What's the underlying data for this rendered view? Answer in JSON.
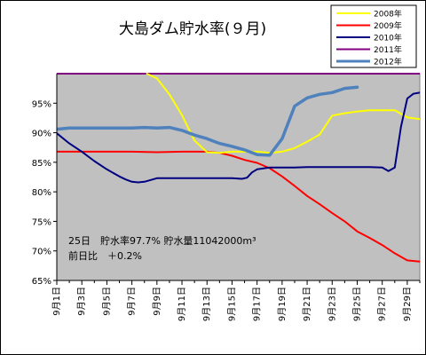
{
  "chart_data": {
    "type": "line",
    "title": "大島ダム貯水率(９月)",
    "ylim": [
      65,
      100
    ],
    "y_ticks": [
      65,
      70,
      75,
      80,
      85,
      90,
      95
    ],
    "y_tick_labels": [
      "65%",
      "70%",
      "75%",
      "80%",
      "85%",
      "90%",
      "95%"
    ],
    "x_ticks": [
      1,
      3,
      5,
      7,
      9,
      11,
      13,
      15,
      17,
      19,
      21,
      23,
      25,
      27,
      29
    ],
    "x_tick_labels": [
      "9月1日",
      "9月3日",
      "9月5日",
      "9月7日",
      "9月9日",
      "9月11日",
      "9月13日",
      "9月15日",
      "9月17日",
      "9月19日",
      "9月21日",
      "9月23日",
      "9月25日",
      "9月27日",
      "9月29日"
    ],
    "xlim": [
      1,
      30
    ],
    "legend_position": "top-right",
    "grid": false,
    "plot_background": "#c0c0c0",
    "annotation": {
      "line1": "25日　貯水率97.7% 貯水量11042000m³",
      "line2": "前日比　＋0.2%"
    },
    "series": [
      {
        "name": "2008年",
        "color": "#ffff00",
        "width": 2,
        "x": [
          8.2,
          9,
          10,
          11,
          12,
          13,
          14,
          15,
          16,
          17,
          18,
          19,
          20,
          21,
          22,
          23,
          24,
          25,
          26,
          27,
          28,
          29,
          30
        ],
        "y": [
          100,
          99.2,
          96.5,
          93,
          88.7,
          86.7,
          86.6,
          86.8,
          86.8,
          86.8,
          86.6,
          86.8,
          87.4,
          88.5,
          89.7,
          92.9,
          93.3,
          93.6,
          93.8,
          93.8,
          93.8,
          92.6,
          92.3
        ]
      },
      {
        "name": "2009年",
        "color": "#ff0000",
        "width": 2,
        "x": [
          1,
          3,
          5,
          7,
          9,
          11,
          13,
          14,
          15,
          16,
          17,
          18,
          19,
          20,
          21,
          22,
          23,
          24,
          25,
          26,
          27,
          28,
          29,
          30
        ],
        "y": [
          86.8,
          86.8,
          86.8,
          86.8,
          86.7,
          86.8,
          86.8,
          86.6,
          86.1,
          85.4,
          84.9,
          84,
          82.6,
          81,
          79.3,
          77.9,
          76.4,
          75,
          73.3,
          72.2,
          71,
          69.6,
          68.4,
          68.2
        ]
      },
      {
        "name": "2010年",
        "color": "#000080",
        "width": 2,
        "x": [
          1,
          2,
          3,
          4,
          5,
          6,
          6.5,
          7,
          7.5,
          8,
          8.5,
          9,
          10,
          11,
          12,
          13,
          14,
          15,
          15.8,
          16.2,
          16.6,
          17,
          18,
          19,
          20,
          21,
          22,
          23,
          24,
          25,
          26,
          27,
          27.5,
          28,
          28.5,
          29,
          29.5,
          30
        ],
        "y": [
          89.9,
          88.2,
          86.8,
          85.2,
          83.8,
          82.6,
          82.1,
          81.7,
          81.6,
          81.7,
          82,
          82.3,
          82.3,
          82.3,
          82.3,
          82.3,
          82.3,
          82.3,
          82.2,
          82.4,
          83.3,
          83.8,
          84.1,
          84.1,
          84.1,
          84.2,
          84.2,
          84.2,
          84.2,
          84.2,
          84.2,
          84.1,
          83.5,
          84.1,
          91,
          95.8,
          96.6,
          96.8
        ]
      },
      {
        "name": "2011年",
        "color": "#800080",
        "width": 2,
        "x": [
          1,
          30
        ],
        "y": [
          100,
          100
        ]
      },
      {
        "name": "2012年",
        "color": "#4f81bd",
        "width": 3.5,
        "x": [
          1,
          2,
          3,
          4,
          5,
          6,
          7,
          8,
          9,
          10,
          11,
          12,
          13,
          14,
          15,
          16,
          17,
          18,
          19,
          20,
          21,
          22,
          23,
          24,
          25
        ],
        "y": [
          90.6,
          90.8,
          90.8,
          90.8,
          90.8,
          90.8,
          90.8,
          90.9,
          90.8,
          90.9,
          90.4,
          89.6,
          89,
          88.2,
          87.7,
          87.1,
          86.3,
          86.2,
          89,
          94.5,
          95.9,
          96.5,
          96.8,
          97.5,
          97.7
        ]
      }
    ]
  }
}
